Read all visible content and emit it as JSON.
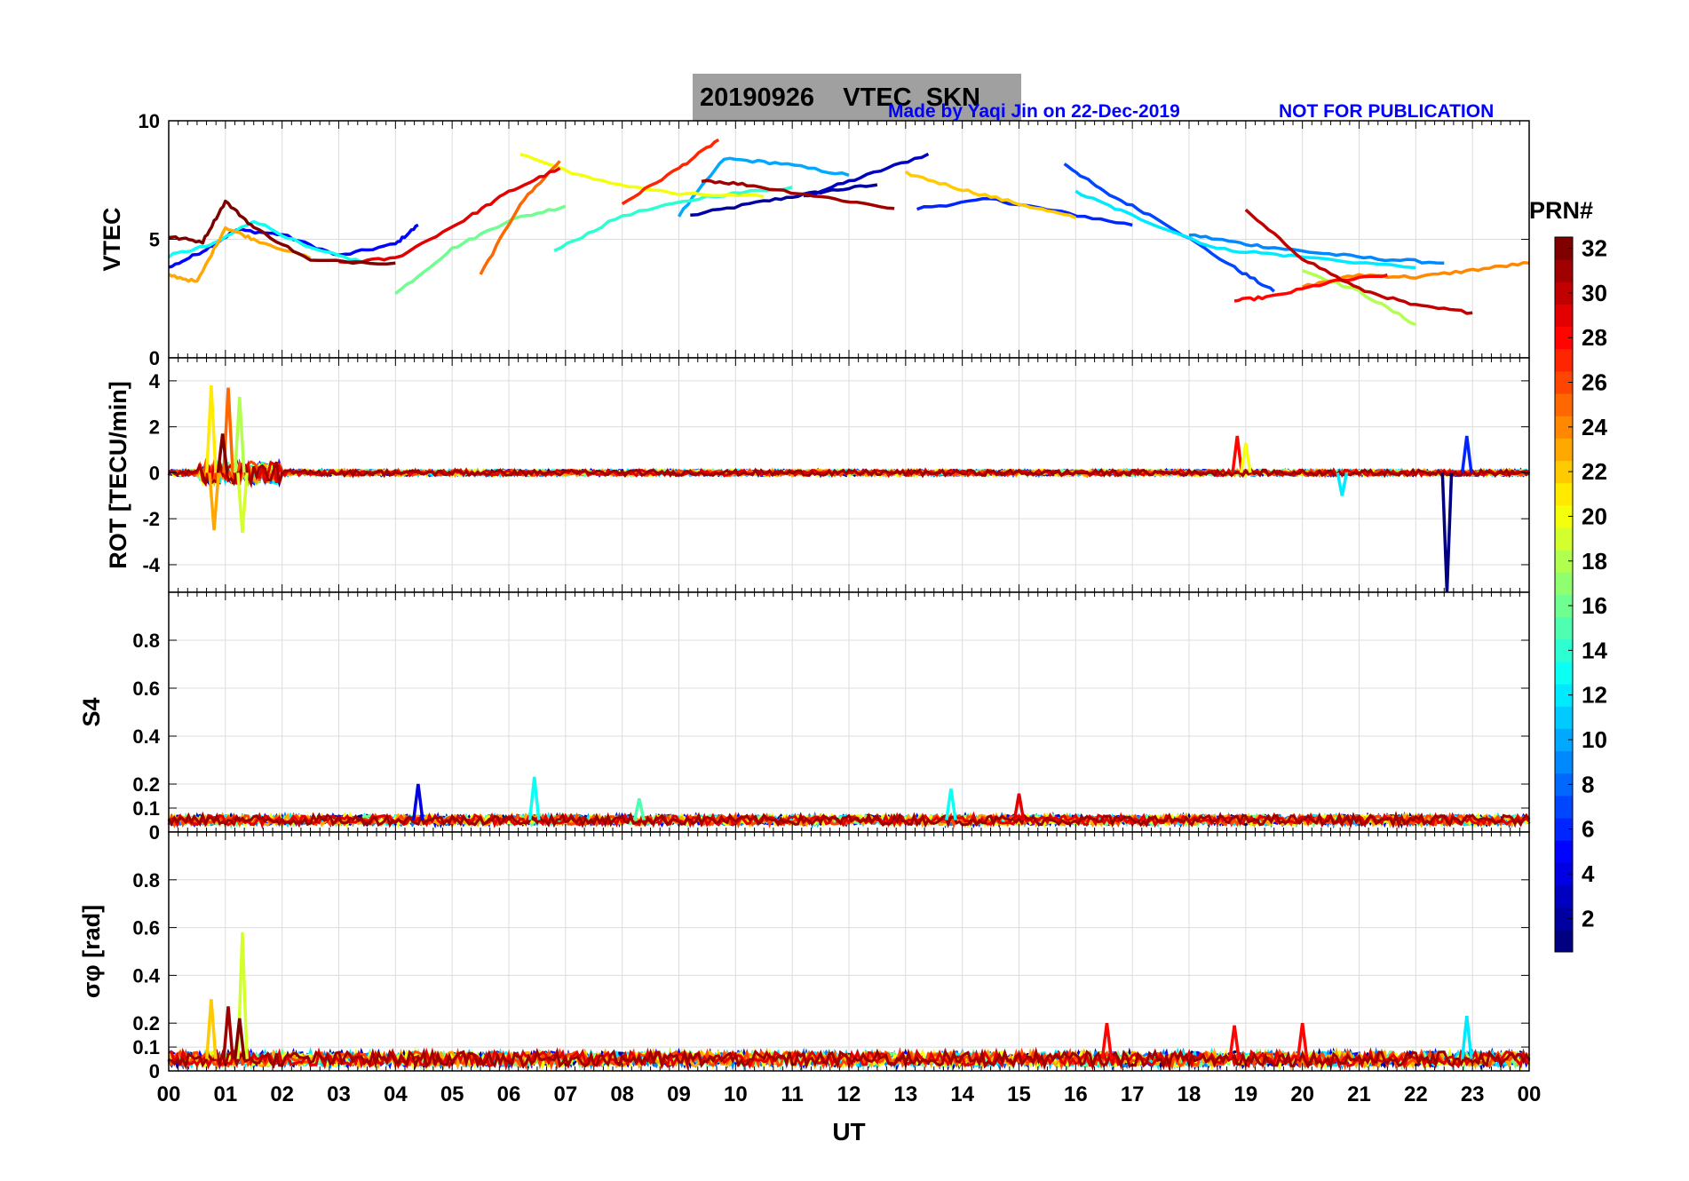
{
  "header": {
    "title": "20190926    VTEC  SKN",
    "made_by": "Made by Yaqi Jin on 22-Dec-2019",
    "notice": "NOT FOR PUBLICATION"
  },
  "colorbar": {
    "label": "PRN#",
    "ticks": [
      "2",
      "4",
      "6",
      "8",
      "10",
      "12",
      "14",
      "16",
      "18",
      "20",
      "22",
      "24",
      "26",
      "28",
      "30",
      "32"
    ],
    "range": [
      1,
      32
    ]
  },
  "chart_data": {
    "type": "line",
    "xlabel": "UT",
    "x_ticks": [
      "00",
      "01",
      "02",
      "03",
      "04",
      "05",
      "06",
      "07",
      "08",
      "09",
      "10",
      "11",
      "12",
      "13",
      "14",
      "15",
      "16",
      "17",
      "18",
      "19",
      "20",
      "21",
      "22",
      "23",
      "00"
    ],
    "xlim": [
      0,
      24
    ],
    "grid": true,
    "panels": [
      {
        "name": "vtec",
        "ylabel": "VTEC",
        "ylim": [
          0,
          10
        ],
        "yticks": [
          "0",
          "5",
          "10"
        ],
        "ytick_values": [
          0,
          5,
          10
        ],
        "series": [
          {
            "prn": 2,
            "x": [
              9.2,
              10.5,
              11.5,
              12.5
            ],
            "y": [
              6.0,
              6.6,
              7.0,
              7.3
            ]
          },
          {
            "prn": 3,
            "x": [
              11.2,
              12.2,
              13.4
            ],
            "y": [
              6.8,
              7.6,
              8.6
            ]
          },
          {
            "prn": 5,
            "x": [
              0.0,
              0.6,
              1.2,
              2.0,
              3.0,
              4.0,
              4.4
            ],
            "y": [
              3.8,
              4.5,
              5.4,
              5.2,
              4.3,
              4.8,
              5.6
            ]
          },
          {
            "prn": 6,
            "x": [
              13.2,
              14.5,
              15.6,
              17.0
            ],
            "y": [
              6.3,
              6.7,
              6.2,
              5.6
            ]
          },
          {
            "prn": 7,
            "x": [
              15.8,
              16.5,
              17.5,
              18.8,
              19.5
            ],
            "y": [
              8.2,
              7.0,
              5.8,
              3.8,
              2.8
            ]
          },
          {
            "prn": 9,
            "x": [
              18.0,
              19.0,
              20.0,
              21.2,
              22.5
            ],
            "y": [
              5.2,
              4.8,
              4.5,
              4.2,
              4.0
            ]
          },
          {
            "prn": 10,
            "x": [
              9.0,
              9.8,
              10.8,
              12.0
            ],
            "y": [
              6.0,
              8.4,
              8.2,
              7.7
            ]
          },
          {
            "prn": 12,
            "x": [
              16.0,
              17.0,
              18.5,
              19.8,
              22.0
            ],
            "y": [
              7.0,
              6.0,
              4.6,
              4.3,
              3.8
            ]
          },
          {
            "prn": 13,
            "x": [
              0.0,
              0.8,
              1.5,
              2.5,
              3.5
            ],
            "y": [
              4.3,
              4.8,
              5.8,
              4.6,
              4.0
            ]
          },
          {
            "prn": 14,
            "x": [
              6.8,
              8.0,
              9.5,
              11.0
            ],
            "y": [
              4.5,
              6.0,
              6.8,
              7.2
            ]
          },
          {
            "prn": 16,
            "x": [
              4.0,
              5.0,
              6.0,
              7.0
            ],
            "y": [
              2.7,
              4.6,
              5.8,
              6.4
            ]
          },
          {
            "prn": 18,
            "x": [
              20.0,
              21.0,
              22.0
            ],
            "y": [
              3.7,
              2.8,
              1.4
            ]
          },
          {
            "prn": 20,
            "x": [
              6.2,
              7.5,
              9.0,
              10.5
            ],
            "y": [
              8.6,
              7.5,
              6.9,
              6.8
            ]
          },
          {
            "prn": 22,
            "x": [
              13.0,
              14.0,
              15.0,
              16.0
            ],
            "y": [
              7.8,
              7.1,
              6.5,
              5.9
            ]
          },
          {
            "prn": 23,
            "x": [
              0.0,
              0.5,
              1.0,
              1.5,
              2.5
            ],
            "y": [
              3.5,
              3.2,
              5.5,
              5.0,
              4.2
            ]
          },
          {
            "prn": 24,
            "x": [
              20.0,
              21.0,
              22.0,
              23.0,
              24.0
            ],
            "y": [
              3.0,
              3.5,
              3.4,
              3.7,
              4.0
            ]
          },
          {
            "prn": 25,
            "x": [
              5.5,
              6.2,
              6.9
            ],
            "y": [
              3.5,
              6.5,
              8.3
            ]
          },
          {
            "prn": 27,
            "x": [
              8.0,
              9.0,
              9.7
            ],
            "y": [
              6.5,
              8.0,
              9.2
            ]
          },
          {
            "prn": 28,
            "x": [
              18.8,
              19.5,
              20.5,
              21.5
            ],
            "y": [
              2.4,
              2.6,
              3.2,
              3.5
            ]
          },
          {
            "prn": 29,
            "x": [
              3.0,
              4.0,
              5.2,
              6.0,
              6.9
            ],
            "y": [
              4.0,
              4.2,
              5.8,
              7.0,
              8.0
            ]
          },
          {
            "prn": 30,
            "x": [
              19.0,
              20.0,
              21.0,
              22.0,
              23.0
            ],
            "y": [
              6.2,
              4.2,
              2.9,
              2.2,
              1.9
            ]
          },
          {
            "prn": 31,
            "x": [
              9.4,
              10.2,
              11.5,
              12.8
            ],
            "y": [
              7.5,
              7.3,
              6.8,
              6.3
            ]
          },
          {
            "prn": 32,
            "x": [
              0.0,
              0.6,
              1.0,
              1.5,
              2.5,
              4.0
            ],
            "y": [
              5.1,
              4.9,
              6.6,
              5.5,
              4.1,
              4.0
            ]
          }
        ]
      },
      {
        "name": "rot",
        "ylabel": "ROT [TECU/min]",
        "ylim": [
          -5.2,
          5.0
        ],
        "yticks": [
          "-4",
          "-2",
          "0",
          "2",
          "4"
        ],
        "ytick_values": [
          -4,
          -2,
          0,
          2,
          4
        ],
        "baseline": 0,
        "noise_amplitude": 0.12,
        "spikes": [
          {
            "prn": 21,
            "x": 0.75,
            "y": 3.8
          },
          {
            "prn": 23,
            "x": 0.8,
            "y": -2.5
          },
          {
            "prn": 25,
            "x": 1.05,
            "y": 3.7
          },
          {
            "prn": 18,
            "x": 1.25,
            "y": 3.3
          },
          {
            "prn": 19,
            "x": 1.3,
            "y": -2.6
          },
          {
            "prn": 32,
            "x": 0.95,
            "y": 1.7
          },
          {
            "prn": 28,
            "x": 18.85,
            "y": 1.6
          },
          {
            "prn": 20,
            "x": 19.0,
            "y": 1.3
          },
          {
            "prn": 12,
            "x": 20.7,
            "y": -1.0
          },
          {
            "prn": 1,
            "x": 22.55,
            "y": -5.2
          },
          {
            "prn": 6,
            "x": 22.9,
            "y": 1.6
          }
        ]
      },
      {
        "name": "s4",
        "ylabel": "S4",
        "ylim": [
          0,
          1.0
        ],
        "yticks": [
          "0",
          "0.1",
          "0.2",
          "0.4",
          "0.6",
          "0.8"
        ],
        "ytick_values": [
          0,
          0.1,
          0.2,
          0.4,
          0.6,
          0.8
        ],
        "baseline": 0.05,
        "noise_amplitude": 0.02,
        "spikes": [
          {
            "prn": 4,
            "x": 4.4,
            "y": 0.2
          },
          {
            "prn": 13,
            "x": 6.45,
            "y": 0.23
          },
          {
            "prn": 15,
            "x": 8.3,
            "y": 0.14
          },
          {
            "prn": 13,
            "x": 13.8,
            "y": 0.18
          },
          {
            "prn": 29,
            "x": 15.0,
            "y": 0.16
          }
        ]
      },
      {
        "name": "sigma_phi",
        "ylabel": "σφ [rad]",
        "ylim": [
          0,
          1.0
        ],
        "yticks": [
          "0",
          "0.1",
          "0.2",
          "0.4",
          "0.6",
          "0.8"
        ],
        "ytick_values": [
          0,
          0.1,
          0.2,
          0.4,
          0.6,
          0.8
        ],
        "baseline": 0.05,
        "noise_amplitude": 0.03,
        "spikes": [
          {
            "prn": 19,
            "x": 1.3,
            "y": 0.58
          },
          {
            "prn": 22,
            "x": 0.75,
            "y": 0.3
          },
          {
            "prn": 31,
            "x": 1.05,
            "y": 0.27
          },
          {
            "prn": 32,
            "x": 1.25,
            "y": 0.22
          },
          {
            "prn": 28,
            "x": 16.55,
            "y": 0.2
          },
          {
            "prn": 28,
            "x": 20.0,
            "y": 0.2
          },
          {
            "prn": 12,
            "x": 22.9,
            "y": 0.23
          },
          {
            "prn": 28,
            "x": 18.8,
            "y": 0.19
          }
        ]
      }
    ]
  }
}
